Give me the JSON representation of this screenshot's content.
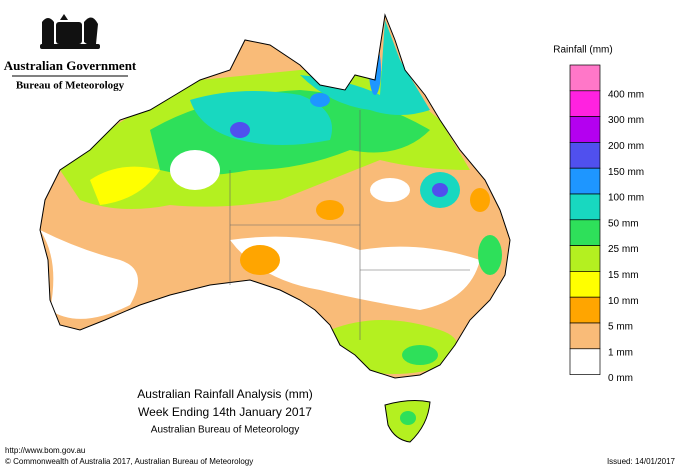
{
  "header": {
    "agency": "Australian Government",
    "bureau": "Bureau of Meteorology"
  },
  "legend": {
    "title": "Rainfall (mm)",
    "items": [
      {
        "label": null,
        "color": "#ff77c8"
      },
      {
        "label": "400 mm",
        "color": "#ff22e0"
      },
      {
        "label": "300 mm",
        "color": "#b400f0"
      },
      {
        "label": "200 mm",
        "color": "#5050ee"
      },
      {
        "label": "150 mm",
        "color": "#1e96ff"
      },
      {
        "label": "100 mm",
        "color": "#18d8c0"
      },
      {
        "label": "50 mm",
        "color": "#2ee05a"
      },
      {
        "label": "25 mm",
        "color": "#b4f020"
      },
      {
        "label": "15 mm",
        "color": "#ffff00"
      },
      {
        "label": "10 mm",
        "color": "#ffa500"
      },
      {
        "label": "5 mm",
        "color": "#f9bb78"
      },
      {
        "label": "1 mm",
        "color": "#ffffff"
      }
    ],
    "last_label": "0 mm"
  },
  "map_title": {
    "line1": "Australian Rainfall Analysis (mm)",
    "line2": "Week Ending 14th January 2017",
    "line3": "Australian Bureau of Meteorology"
  },
  "footer": {
    "url": "http://www.bom.gov.au",
    "copyright": "© Commonwealth of Australia 2017, Australian Bureau of Meteorology",
    "issued": "Issued: 14/01/2017"
  }
}
